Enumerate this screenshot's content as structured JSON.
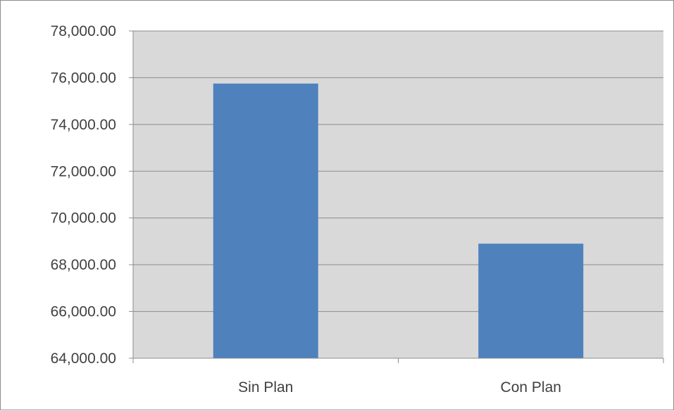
{
  "chart_data": {
    "type": "bar",
    "categories": [
      "Sin Plan",
      "Con Plan"
    ],
    "values": [
      75750,
      68900
    ],
    "ylim": [
      64000,
      78000
    ],
    "yticks": [
      "64,000.00",
      "66,000.00",
      "68,000.00",
      "70,000.00",
      "72,000.00",
      "74,000.00",
      "76,000.00",
      "78,000.00"
    ],
    "ytick_values": [
      64000,
      66000,
      68000,
      70000,
      72000,
      74000,
      76000,
      78000
    ],
    "grid": true,
    "colors": {
      "bar": "#4f81bd",
      "plot_background": "#d9d9d9",
      "gridline": "#8c8c8c",
      "axis": "#8c8c8c",
      "text": "#404040"
    }
  }
}
